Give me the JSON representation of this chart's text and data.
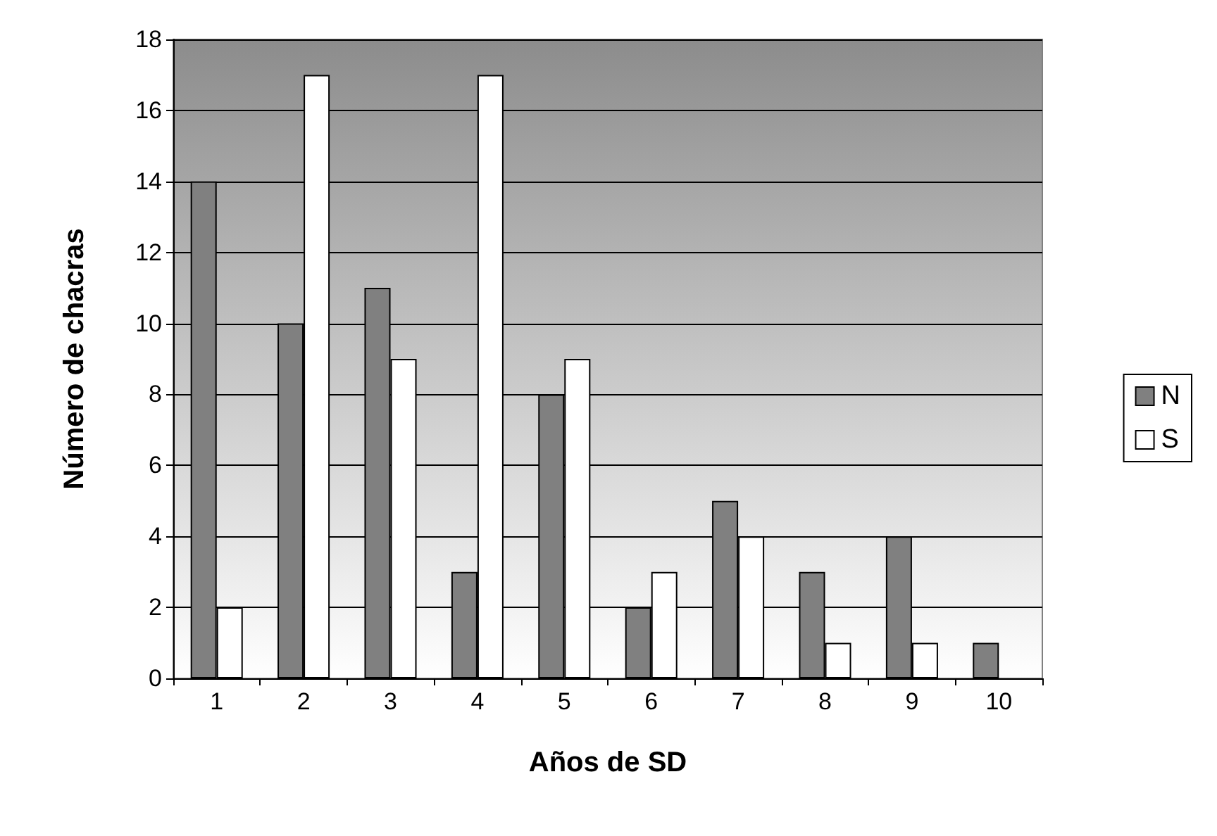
{
  "chart_data": {
    "type": "bar",
    "xlabel": "Años de SD",
    "ylabel": "Número de chacras",
    "categories": [
      "1",
      "2",
      "3",
      "4",
      "5",
      "6",
      "7",
      "8",
      "9",
      "10"
    ],
    "series": [
      {
        "name": "N",
        "color": "#808080",
        "values": [
          14,
          10,
          11,
          3,
          8,
          2,
          5,
          3,
          4,
          1
        ]
      },
      {
        "name": "S",
        "color": "#ffffff",
        "values": [
          2,
          17,
          9,
          17,
          9,
          3,
          4,
          1,
          1,
          null
        ]
      }
    ],
    "ylim": [
      0,
      18
    ],
    "yticks": [
      0,
      2,
      4,
      6,
      8,
      10,
      12,
      14,
      16,
      18
    ],
    "grid": "y",
    "legend": "right"
  }
}
